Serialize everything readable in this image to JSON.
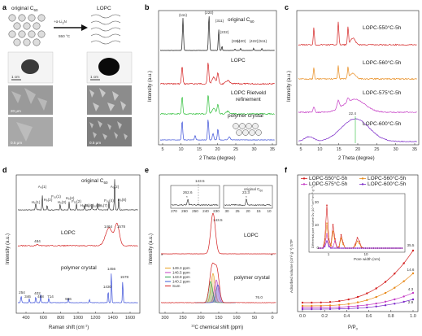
{
  "panels": {
    "a": {
      "label": "a",
      "title_original": "original C",
      "title_original_sub": "60",
      "title_lopc": "LOPC",
      "arrow_top": "+α-Li",
      "arrow_top_sub": "3",
      "arrow_top_end": "N",
      "arrow_bottom": "550 °C",
      "scale_1cm_left": "1 cm",
      "scale_1cm_right": "1 cm",
      "scale_20um": "20 μm",
      "scale_05um_left": "0.5 μm",
      "scale_05um_right": "0.5 μm"
    },
    "b": {
      "label": "b",
      "xlabel": "2 Theta (degree)",
      "ylabel": "Intensity (a.u.)",
      "xticks": [
        "5",
        "10",
        "15",
        "20",
        "25",
        "30",
        "35"
      ],
      "labels": [
        "original C60",
        "LOPC",
        "LOPC Rietveld refinement",
        "polymer crystal"
      ],
      "label_original": "original C",
      "label_original_sub": "60",
      "label_lopc": "LOPC",
      "label_riet_1": "LOPC Rietveld",
      "label_riet_2": "refinement",
      "label_poly": "polymer crystal",
      "peak_labels": [
        "(111)",
        "(220)",
        "(311)",
        "(222)",
        "(331)",
        "(420)",
        "(422)",
        "(511)"
      ]
    },
    "c": {
      "label": "c",
      "xlabel": "2 Theta (degree)",
      "ylabel": "Intensity (a.u.)",
      "xticks": [
        "5",
        "10",
        "15",
        "20",
        "25",
        "30",
        "35"
      ],
      "series_labels": [
        "LOPC-550°C-5h",
        "LOPC-560°C-5h",
        "LOPC-575°C-5h",
        "LOPC-600°C-5h"
      ],
      "peak_value": "22.4"
    },
    "d": {
      "label": "d",
      "xlabel": "Raman shift (cm",
      "xlabel_sup": "-1",
      "xlabel_end": ")",
      "ylabel": "Intensity (a.u.)",
      "xticks": [
        "400",
        "600",
        "800",
        "1000",
        "1200",
        "1400",
        "1600"
      ],
      "label_original": "original C",
      "label_original_sub": "60",
      "label_lopc": "LOPC",
      "label_poly": "polymer crystal",
      "lopc_values": [
        "484",
        "1464",
        "1578"
      ],
      "poly_values": [
        "254",
        "346",
        "402",
        "468",
        "714",
        "986",
        "1430",
        "1456",
        "1578"
      ],
      "modes": [
        "H₉(1)",
        "A₉(1)",
        "H₉(2)",
        "F₁ᵤ(1)",
        "H₉(3)",
        "H₉(4)",
        "F₁ᵤ(2)",
        "H₉(5)",
        "H₉(6)",
        "F₁ᵤ(3)",
        "H₉(7)",
        "F₁ᵤ(4)",
        "A₉(2)",
        "H₉(8)"
      ]
    },
    "e": {
      "label": "e",
      "xlabel": "C chemical shift (ppm)",
      "xlabel_sup": "13",
      "ylabel": "Intensity (a.u.)",
      "xticks": [
        "300",
        "250",
        "200",
        "150",
        "100",
        "50",
        "0"
      ],
      "inset_left_peak": "143.5",
      "inset_left_star": "262.6",
      "inset_left_xticks": [
        "270",
        "260",
        "250",
        "240",
        "230"
      ],
      "inset_right_label": "original C",
      "inset_right_label_sub": "60",
      "inset_right_star": "23.3",
      "inset_right_xticks": [
        "30",
        "25",
        "20",
        "15",
        "10"
      ],
      "label_lopc": "LOPC",
      "label_lopc_peak": "143.5",
      "label_poly": "polymer crystal",
      "poly_right_value": "76.0",
      "legend": [
        "149.3 ppm",
        "146.5 ppm",
        "143.9 ppm",
        "140.2 ppm",
        "Sum"
      ],
      "legend_colors": [
        "#e8a020",
        "#c040c0",
        "#2a9d4a",
        "#3b5bd6",
        "#d42020"
      ]
    },
    "f": {
      "label": "f",
      "xlabel": "P/P",
      "xlabel_sub": "0",
      "ylabel": "Adsorbed volume (cm³ g⁻¹) STP",
      "xticks": [
        "0.0",
        "0.2",
        "0.4",
        "0.6",
        "0.8",
        "1.0"
      ],
      "legend": [
        "LOPC-550°C-5h",
        "LOPC-560°C-5h",
        "LOPC-575°C-5h",
        "LOPC-600°C-5h"
      ],
      "legend_colors": [
        "#d42020",
        "#e88a1a",
        "#c43ac4",
        "#7a28c8"
      ],
      "end_values": [
        "35.5",
        "14.6",
        "4.3",
        "2.9"
      ],
      "inset_xlabel": "Pore width (nm)",
      "inset_ylabel": "Differential pore volume Dv (10⁻³ cm³ nm⁻¹ g⁻¹)",
      "inset_xticks": [
        "1",
        "10"
      ],
      "inset_yticks": [
        "0",
        "10",
        "20"
      ]
    }
  },
  "colors": {
    "black": "#1a1a1a",
    "red": "#d42020",
    "green": "#2fbf3a",
    "blue": "#3b4fd8",
    "orange": "#e88a1a",
    "magenta": "#c43ac4",
    "purple": "#7a28c8"
  }
}
